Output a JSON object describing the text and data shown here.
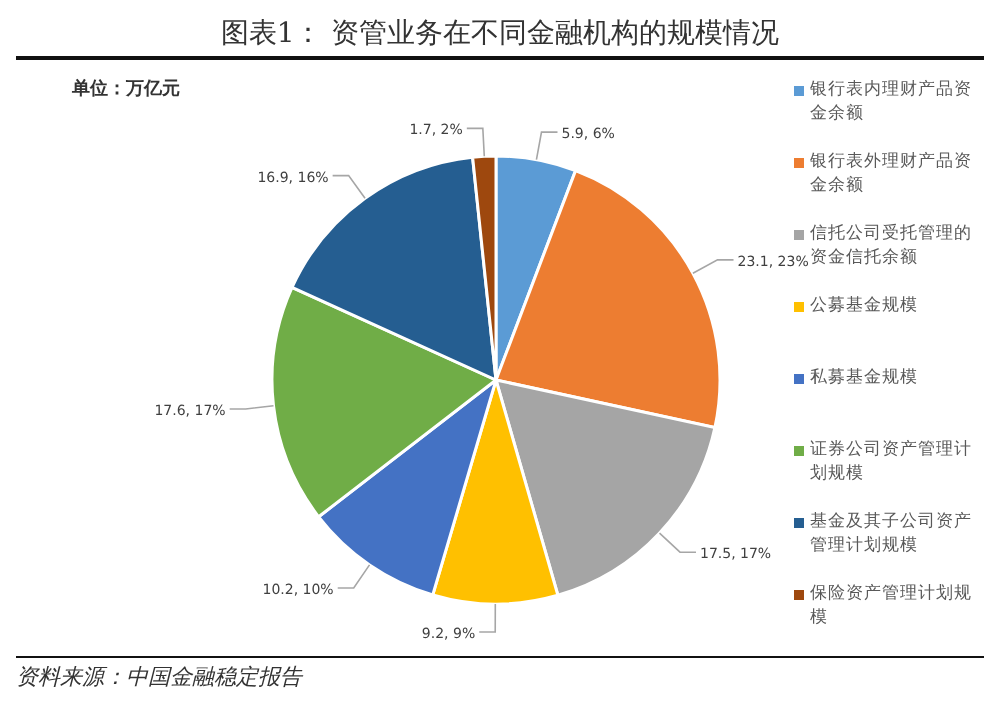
{
  "chart_data": {
    "type": "pie",
    "title": "图表1：  资管业务在不同金融机构的规模情况",
    "categories": [
      "银行表内理财产品资金余额",
      "银行表外理财产品资金余额",
      "信托公司受托管理的资金信托余额",
      "公募基金规模",
      "私募基金规模",
      "证券公司资产管理计划规模",
      "基金及其子公司资产管理计划规模",
      "保险资产管理计划规模"
    ],
    "values": [
      5.9,
      23.1,
      17.5,
      9.2,
      10.2,
      17.6,
      16.9,
      1.7
    ],
    "value_labels": [
      "5.9, 6%",
      "23.1, 23%",
      "17.5, 17%",
      "9.2, 9%",
      "10.2, 10%",
      "17.6, 17%",
      "16.9, 16%",
      "1.7, 2%"
    ],
    "colors": [
      "#5b9bd5",
      "#ed7d31",
      "#a5a5a5",
      "#ffc000",
      "#4472c4",
      "#70ad47",
      "#255e91",
      "#9e480e"
    ],
    "legend": "right",
    "annotations": [
      "单位：万亿元",
      "资料来源：中国金融稳定报告"
    ]
  }
}
